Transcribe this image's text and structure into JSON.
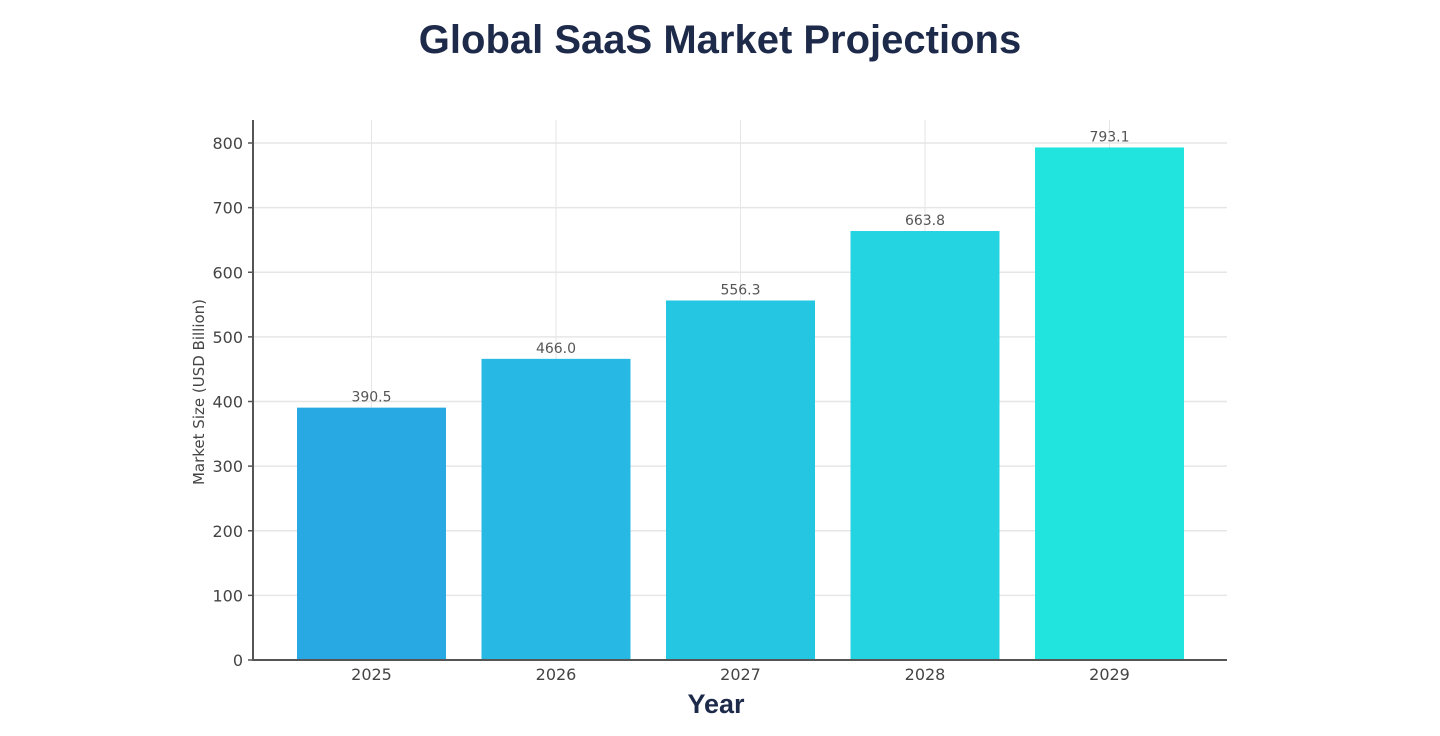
{
  "chart_data": {
    "type": "bar",
    "title": "Global SaaS Market Projections",
    "xlabel": "Year",
    "ylabel": "Market Size (USD Billion)",
    "categories": [
      "2025",
      "2026",
      "2027",
      "2028",
      "2029"
    ],
    "values": [
      390.5,
      466.0,
      556.3,
      663.8,
      793.1
    ],
    "data_labels": [
      "390.5",
      "466.0",
      "556.3",
      "663.8",
      "793.1"
    ],
    "bar_colors": [
      "#29a9e3",
      "#27b8e3",
      "#25c6e1",
      "#24d4e0",
      "#22e4df"
    ],
    "ylim": [
      0,
      800
    ],
    "yticks": [
      0,
      100,
      200,
      300,
      400,
      500,
      600,
      700,
      800
    ],
    "grid": true,
    "legend": "none"
  }
}
